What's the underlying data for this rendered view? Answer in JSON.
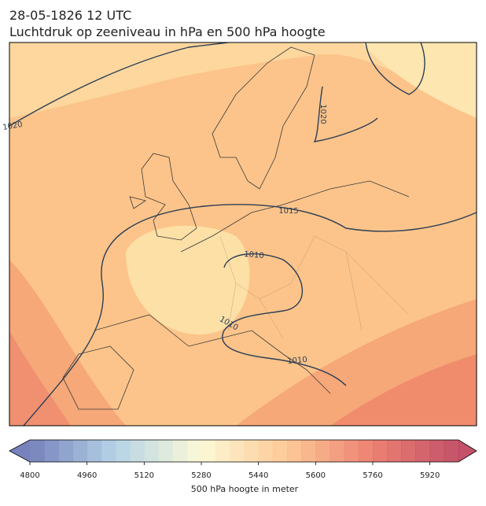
{
  "title": "28-05-1826 12 UTC",
  "subtitle": "Luchtdruk op zeeniveau in hPa en 500 hPa hoogte",
  "map": {
    "isobar_labels": [
      "1020",
      "1020",
      "1015",
      "1010",
      "1010",
      "1010"
    ]
  },
  "colorbar": {
    "label": "500 hPa hoogte in meter",
    "min": 4800,
    "max": 6000,
    "step": 40,
    "ticks": [
      4800,
      4960,
      5120,
      5280,
      5440,
      5600,
      5760,
      5920
    ],
    "colors": [
      "#5f6cb0",
      "#a8cce2",
      "#fbf8cf",
      "#fdbf84",
      "#e96b5a",
      "#b8334f"
    ]
  }
}
